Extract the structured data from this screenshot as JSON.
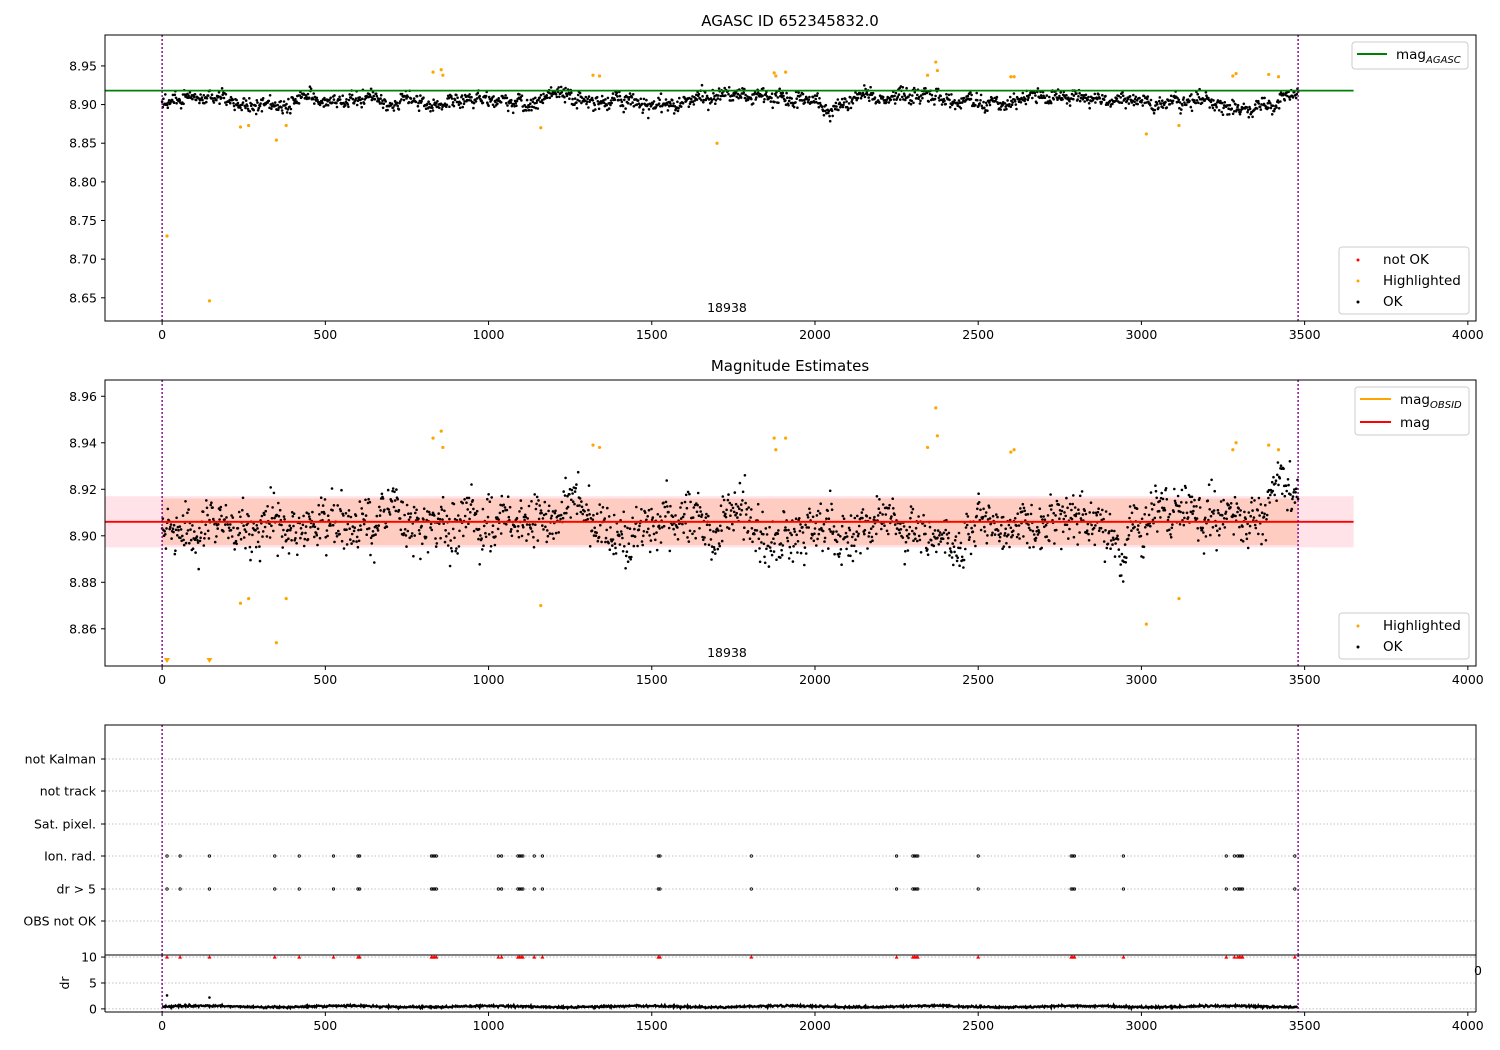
{
  "chart_data": [
    {
      "type": "scatter",
      "title": "AGASC ID 652345832.0",
      "xlim": [
        -175,
        4025
      ],
      "ylim": [
        8.62,
        8.99
      ],
      "x_ticks": [
        "0",
        "500",
        "1000",
        "1500",
        "2000",
        "2500",
        "3000",
        "3500",
        "4000"
      ],
      "y_ticks": [
        "8.65",
        "8.70",
        "8.75",
        "8.80",
        "8.85",
        "8.90",
        "8.95"
      ],
      "obsid_label": "18938",
      "obsid_bounds": [
        0,
        3480
      ],
      "lines": [
        {
          "name": "mag_AGASC",
          "y": 8.918,
          "color": "#008000"
        }
      ],
      "legend_lines": [
        {
          "label": "mag",
          "sub": "AGASC",
          "color": "#008000"
        }
      ],
      "legend_points": [
        {
          "label": "not OK",
          "color": "#ff0000"
        },
        {
          "label": "Highlighted",
          "color": "#ffa500"
        },
        {
          "label": "OK",
          "color": "#000000"
        }
      ],
      "highlighted_points": [
        [
          15,
          8.73
        ],
        [
          145,
          8.646
        ],
        [
          240,
          8.871
        ],
        [
          265,
          8.873
        ],
        [
          350,
          8.854
        ],
        [
          380,
          8.873
        ],
        [
          830,
          8.942
        ],
        [
          855,
          8.945
        ],
        [
          860,
          8.938
        ],
        [
          1160,
          8.87
        ],
        [
          1320,
          8.938
        ],
        [
          1340,
          8.937
        ],
        [
          1700,
          8.85
        ],
        [
          1875,
          8.941
        ],
        [
          1880,
          8.937
        ],
        [
          1910,
          8.942
        ],
        [
          2345,
          8.938
        ],
        [
          2370,
          8.955
        ],
        [
          2375,
          8.944
        ],
        [
          2600,
          8.936
        ],
        [
          2610,
          8.936
        ],
        [
          3015,
          8.862
        ],
        [
          3115,
          8.873
        ],
        [
          3280,
          8.937
        ],
        [
          3290,
          8.94
        ],
        [
          3390,
          8.939
        ],
        [
          3420,
          8.936
        ]
      ],
      "ok_series": {
        "n_points": 1800,
        "x_range": [
          0,
          3480
        ],
        "mean": 8.906,
        "scatter": 0.008
      }
    },
    {
      "type": "scatter",
      "title": "Magnitude Estimates",
      "xlim": [
        -175,
        4025
      ],
      "ylim": [
        8.844,
        8.967
      ],
      "x_ticks": [
        "0",
        "500",
        "1000",
        "1500",
        "2000",
        "2500",
        "3000",
        "3500",
        "4000"
      ],
      "y_ticks": [
        "8.86",
        "8.88",
        "8.90",
        "8.92",
        "8.94",
        "8.96"
      ],
      "obsid_label": "18938",
      "obsid_bounds": [
        0,
        3480
      ],
      "lines": [
        {
          "name": "mag_OBSID",
          "y": 8.906,
          "color": "#ffa500",
          "band": [
            8.896,
            8.916
          ]
        },
        {
          "name": "mag",
          "y": 8.906,
          "color": "#ff0000",
          "band": [
            8.895,
            8.917
          ]
        }
      ],
      "legend_lines": [
        {
          "label": "mag",
          "sub": "OBSID",
          "color": "#ffa500"
        },
        {
          "label": "mag",
          "sub": "",
          "color": "#ff0000"
        }
      ],
      "legend_points": [
        {
          "label": "Highlighted",
          "color": "#ffa500"
        },
        {
          "label": "OK",
          "color": "#000000"
        }
      ],
      "highlighted_points": [
        [
          240,
          8.871
        ],
        [
          265,
          8.873
        ],
        [
          350,
          8.854
        ],
        [
          380,
          8.873
        ],
        [
          830,
          8.942
        ],
        [
          855,
          8.945
        ],
        [
          860,
          8.938
        ],
        [
          1160,
          8.87
        ],
        [
          1320,
          8.939
        ],
        [
          1340,
          8.938
        ],
        [
          1875,
          8.942
        ],
        [
          1880,
          8.937
        ],
        [
          1910,
          8.942
        ],
        [
          2345,
          8.938
        ],
        [
          2370,
          8.955
        ],
        [
          2375,
          8.943
        ],
        [
          2600,
          8.936
        ],
        [
          2610,
          8.937
        ],
        [
          3015,
          8.862
        ],
        [
          3115,
          8.873
        ],
        [
          3280,
          8.937
        ],
        [
          3290,
          8.94
        ],
        [
          3390,
          8.939
        ],
        [
          3420,
          8.937
        ]
      ],
      "below_range_markers": [
        15,
        145
      ],
      "ok_series": {
        "n_points": 1800,
        "x_range": [
          0,
          3480
        ],
        "mean": 8.905,
        "scatter": 0.009
      }
    },
    {
      "type": "scatter",
      "title": "",
      "xlim": [
        -175,
        4025
      ],
      "flag_categories": [
        "not Kalman",
        "not track",
        "Sat. pixel.",
        "Ion. rad.",
        "dr > 5",
        "OBS not OK"
      ],
      "flag_events": {
        "Ion. rad.": [
          15,
          55,
          145,
          345,
          420,
          525,
          600,
          605,
          825,
          830,
          835,
          840,
          1030,
          1040,
          1090,
          1095,
          1100,
          1105,
          1140,
          1165,
          1520,
          1525,
          1805,
          2250,
          2300,
          2305,
          2310,
          2315,
          2500,
          2785,
          2790,
          2795,
          2945,
          3260,
          3285,
          3295,
          3300,
          3305,
          3310,
          3470
        ],
        "dr > 5": [
          15,
          55,
          145,
          345,
          420,
          525,
          600,
          605,
          825,
          830,
          835,
          840,
          1030,
          1040,
          1090,
          1095,
          1100,
          1105,
          1140,
          1165,
          1520,
          1525,
          1805,
          2250,
          2300,
          2305,
          2310,
          2315,
          2500,
          2785,
          2790,
          2795,
          2945,
          3260,
          3285,
          3295,
          3300,
          3305,
          3310,
          3470
        ]
      },
      "obsid_bounds": [
        0,
        3480
      ]
    },
    {
      "type": "line",
      "title": "",
      "xlim": [
        -175,
        4025
      ],
      "ylim": [
        -0.6,
        10.4
      ],
      "ylabel": "dr",
      "x_ticks": [
        "0",
        "500",
        "1000",
        "1500",
        "2000",
        "2500",
        "3000",
        "3500",
        "4000"
      ],
      "y_ticks": [
        "0",
        "5",
        "10"
      ],
      "clipped_value": 10,
      "clipped_markers": [
        15,
        55,
        145,
        345,
        420,
        525,
        600,
        605,
        825,
        830,
        835,
        840,
        1030,
        1040,
        1090,
        1095,
        1100,
        1105,
        1140,
        1165,
        1520,
        1525,
        1805,
        2250,
        2300,
        2305,
        2310,
        2315,
        2500,
        2785,
        2790,
        2795,
        2945,
        3260,
        3285,
        3295,
        3300,
        3305,
        3310,
        3470
      ],
      "outliers": [
        [
          15,
          2.6
        ],
        [
          145,
          2.2
        ]
      ],
      "dr_series": {
        "x_range": [
          0,
          3480
        ],
        "mean": 0.45,
        "scatter": 0.15
      },
      "overflow_label": "0",
      "obsid_bounds": [
        0,
        3480
      ]
    }
  ]
}
